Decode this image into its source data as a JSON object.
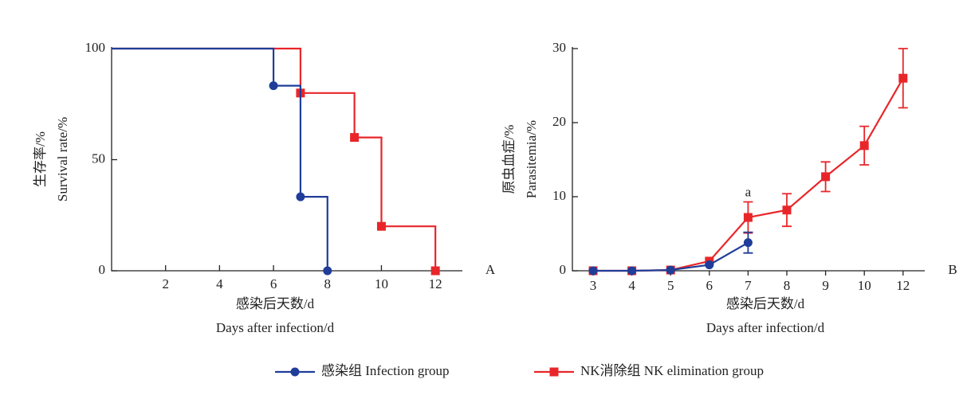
{
  "chart_data": [
    {
      "type": "step",
      "panel": "A",
      "ylabel": [
        "生存率/%",
        "Survival rate/%"
      ],
      "xlabel": [
        "感染后天数/d",
        "Days after infection/d"
      ],
      "xlim": [
        0,
        13
      ],
      "xticks": [
        2,
        4,
        6,
        8,
        10,
        12
      ],
      "ylim": [
        0,
        100
      ],
      "yticks": [
        0,
        50,
        100
      ],
      "series": [
        {
          "name": "感染组 Infection group",
          "color": "#1f3d99",
          "marker": "circle",
          "x": [
            0,
            6,
            7,
            8
          ],
          "values": [
            100,
            83.3,
            33.3,
            0
          ]
        },
        {
          "name": "NK消除组 NK elimination group",
          "color": "#e8262a",
          "marker": "square",
          "x": [
            0,
            7,
            9,
            10,
            12
          ],
          "values": [
            100,
            80,
            60,
            20,
            0
          ]
        }
      ]
    },
    {
      "type": "line",
      "panel": "B",
      "ylabel": [
        "原虫血症/%",
        "Parasitemia/%"
      ],
      "xlabel": [
        "感染后天数/d",
        "Days after infection/d"
      ],
      "categories": [
        "3",
        "4",
        "5",
        "6",
        "7",
        "8",
        "9",
        "10",
        "12"
      ],
      "ylim": [
        0,
        30
      ],
      "yticks": [
        0,
        10,
        20,
        30
      ],
      "annotation": {
        "text": "a",
        "category": 4,
        "y": 10.5
      },
      "series": [
        {
          "name": "感染组 Infection group",
          "color": "#1f3d99",
          "marker": "circle",
          "values": [
            0,
            0,
            0.1,
            0.8,
            3.8,
            null,
            null,
            null,
            null
          ],
          "errors": [
            0,
            0,
            0,
            0,
            1.4,
            null,
            null,
            null,
            null
          ]
        },
        {
          "name": "NK消除组 NK elimination group",
          "color": "#e8262a",
          "marker": "square",
          "values": [
            0,
            0,
            0.1,
            1.3,
            7.2,
            8.2,
            12.7,
            16.9,
            26.0
          ],
          "errors": [
            0,
            0,
            0,
            0,
            2.1,
            2.2,
            2.0,
            2.6,
            4.0
          ]
        }
      ]
    }
  ]
}
